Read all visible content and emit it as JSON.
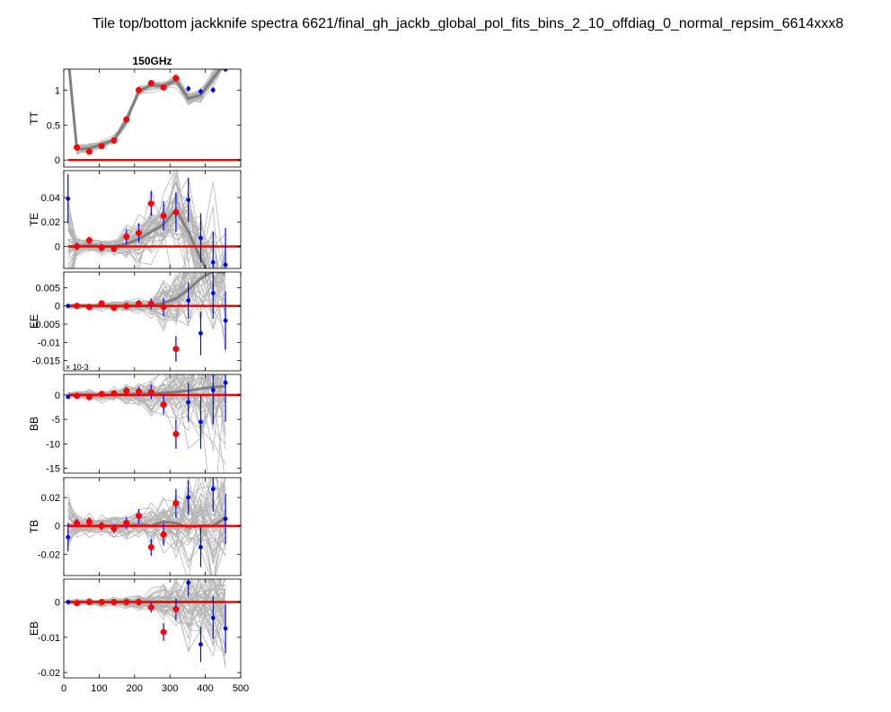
{
  "title": "Tile top/bottom jackknife spectra 6621/final_gh_jackb_global_pol_fits_bins_2_10_offdiag_0_normal_repsim_6614xxx8",
  "chart_data": {
    "type": "scatter",
    "title": "150GHz",
    "xlim": [
      0,
      500
    ],
    "xticks": [
      0,
      100,
      200,
      300,
      400,
      500
    ],
    "x": [
      12,
      37,
      72,
      107,
      142,
      177,
      212,
      247,
      282,
      317,
      352,
      387,
      422,
      457
    ],
    "grid": false,
    "colors": {
      "points": "#ff0000",
      "excluded_points": "#0000ff",
      "sims": "#b4b4b4",
      "sim_mean": "#808080",
      "zero_line": "#ff0000"
    },
    "panels": [
      {
        "ylabel": "TT",
        "ylim": [
          -0.1,
          1.3
        ],
        "yticks": [
          0,
          0.5,
          1
        ],
        "ytick_labels": [
          "0",
          "0.5",
          "1"
        ],
        "exponent_label": "",
        "values": [
          1.5,
          0.18,
          0.12,
          0.2,
          0.28,
          0.58,
          1.0,
          1.1,
          1.04,
          1.17,
          1.02,
          0.98,
          1.0,
          1.3
        ],
        "errors": [
          0.02,
          0.03,
          0.03,
          0.03,
          0.03,
          0.03,
          0.03,
          0.03,
          0.03,
          0.04,
          0.04,
          0.04,
          0.04,
          0.04
        ],
        "mean": [
          1.5,
          0.15,
          0.17,
          0.22,
          0.29,
          0.56,
          0.99,
          1.07,
          1.06,
          1.14,
          0.88,
          0.93,
          1.17,
          1.4
        ]
      },
      {
        "ylabel": "TE",
        "ylim": [
          -0.018,
          0.062
        ],
        "yticks": [
          0,
          0.02,
          0.04
        ],
        "ytick_labels": [
          "0",
          "0.02",
          "0.04"
        ],
        "exponent_label": "",
        "values": [
          0.039,
          0.0,
          0.005,
          -0.001,
          -0.002,
          0.008,
          0.011,
          0.035,
          0.025,
          0.028,
          0.038,
          0.007,
          -0.013,
          -0.015
        ],
        "errors": [
          0.02,
          0.003,
          0.003,
          0.003,
          0.003,
          0.006,
          0.008,
          0.01,
          0.012,
          0.016,
          0.018,
          0.02,
          0.025,
          0.03
        ],
        "mean": [
          0.0,
          0.0,
          0.001,
          0.0,
          0.0,
          0.002,
          0.006,
          0.012,
          0.018,
          0.03,
          0.012,
          -0.01,
          -0.03,
          -0.05
        ]
      },
      {
        "ylabel": "EE",
        "ylim": [
          -0.0178,
          0.0093
        ],
        "yticks": [
          -0.015,
          -0.01,
          -0.005,
          0,
          0.005
        ],
        "ytick_labels": [
          "-0.015",
          "-0.01",
          "-0.005",
          "0",
          "0.005"
        ],
        "exponent_label": "",
        "values": [
          0.0,
          0.0,
          -0.0003,
          0.0007,
          -0.0005,
          0.0,
          0.0006,
          0.0006,
          -0.0003,
          -0.0118,
          0.0015,
          -0.0075,
          0.0035,
          -0.004
        ],
        "errors": [
          0.0003,
          0.0004,
          0.0004,
          0.0005,
          0.0006,
          0.0008,
          0.001,
          0.0015,
          0.0025,
          0.0035,
          0.005,
          0.006,
          0.007,
          0.008
        ],
        "mean": [
          0.0,
          0.0,
          0.0,
          0.0,
          0.0,
          0.0,
          0.0,
          0.0,
          0.0008,
          0.002,
          0.0045,
          0.0075,
          0.0095,
          0.009
        ]
      },
      {
        "ylabel": "BB",
        "ylim": [
          -16,
          4.2
        ],
        "yticks": [
          -15,
          -10,
          -5,
          0
        ],
        "ytick_labels": [
          "-15",
          "-10",
          "-5",
          "0"
        ],
        "exponent_label": "× 10^-3",
        "values": [
          -0.4,
          -0.2,
          -0.4,
          0.2,
          0.3,
          0.8,
          0.7,
          0.6,
          -2.0,
          -8.0,
          -1.5,
          -5.5,
          1.0,
          2.5
        ],
        "errors": [
          0.3,
          0.4,
          0.4,
          0.5,
          0.6,
          0.8,
          1.0,
          1.5,
          2.0,
          3.0,
          4.0,
          5.5,
          7.0,
          8.0
        ],
        "mean": [
          0.0,
          0.0,
          0.0,
          0.0,
          0.0,
          0.1,
          0.2,
          0.3,
          0.4,
          0.6,
          0.9,
          1.3,
          1.6,
          1.8
        ]
      },
      {
        "ylabel": "TB",
        "ylim": [
          -0.035,
          0.034
        ],
        "yticks": [
          -0.02,
          0,
          0.02
        ],
        "ytick_labels": [
          "-0.02",
          "0",
          "0.02"
        ],
        "exponent_label": "",
        "values": [
          -0.008,
          0.002,
          0.003,
          0.0,
          -0.002,
          0.002,
          0.007,
          -0.015,
          -0.006,
          0.016,
          0.02,
          -0.015,
          0.026,
          0.005
        ],
        "errors": [
          0.01,
          0.003,
          0.003,
          0.003,
          0.003,
          0.004,
          0.005,
          0.006,
          0.008,
          0.01,
          0.012,
          0.014,
          0.016,
          0.018
        ],
        "mean": [
          0.0,
          0.0,
          0.0,
          0.0,
          0.0,
          0.0,
          0.001,
          0.0,
          0.003,
          0.002,
          -0.001,
          0.0,
          0.0,
          0.006
        ]
      },
      {
        "ylabel": "EB",
        "ylim": [
          -0.0215,
          0.0065
        ],
        "yticks": [
          -0.02,
          -0.01,
          0
        ],
        "ytick_labels": [
          "-0.02",
          "-0.01",
          "0"
        ],
        "exponent_label": "",
        "values": [
          0.0,
          -0.0003,
          0.0,
          0.0,
          0.0,
          0.0,
          0.0,
          -0.0015,
          -0.0085,
          -0.002,
          0.0055,
          -0.012,
          -0.0045,
          -0.0075
        ],
        "errors": [
          0.0003,
          0.0004,
          0.0004,
          0.0005,
          0.0006,
          0.0008,
          0.001,
          0.0015,
          0.0025,
          0.003,
          0.004,
          0.005,
          0.006,
          0.007
        ],
        "mean": [
          0.0,
          0.0,
          0.0,
          0.0,
          0.0,
          0.0,
          0.0,
          0.0,
          0.0,
          0.0,
          0.0,
          0.0,
          0.0,
          0.0
        ]
      }
    ]
  }
}
